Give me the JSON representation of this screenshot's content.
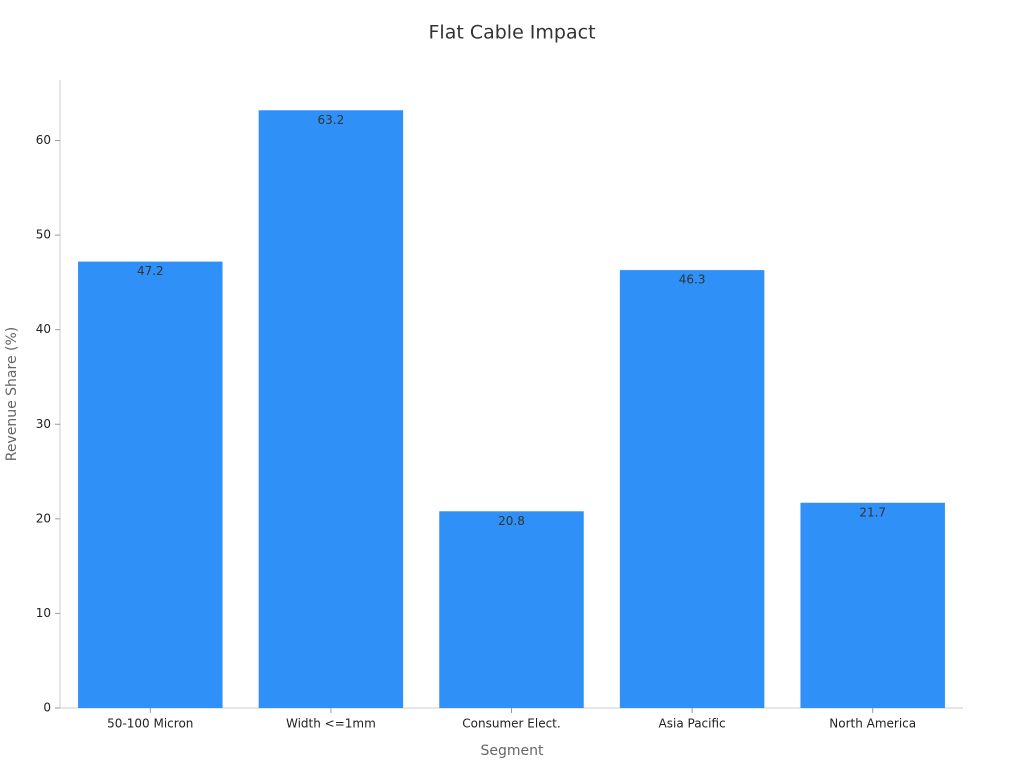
{
  "chart_data": {
    "type": "bar",
    "title": "Flat Cable Impact",
    "x_label": "Segment",
    "y_label": "Revenue Share (%)",
    "categories": [
      "50-100 Micron",
      "Width <=1mm",
      "Consumer Elect.",
      "Asia Pacific",
      "North America"
    ],
    "values": [
      47.2,
      63.2,
      20.8,
      46.3,
      21.7
    ],
    "color": "#2f91f7",
    "ylim": [
      0,
      66.4
    ],
    "yticks": [
      0,
      10,
      20,
      30,
      40,
      50,
      60
    ],
    "grid": false
  }
}
